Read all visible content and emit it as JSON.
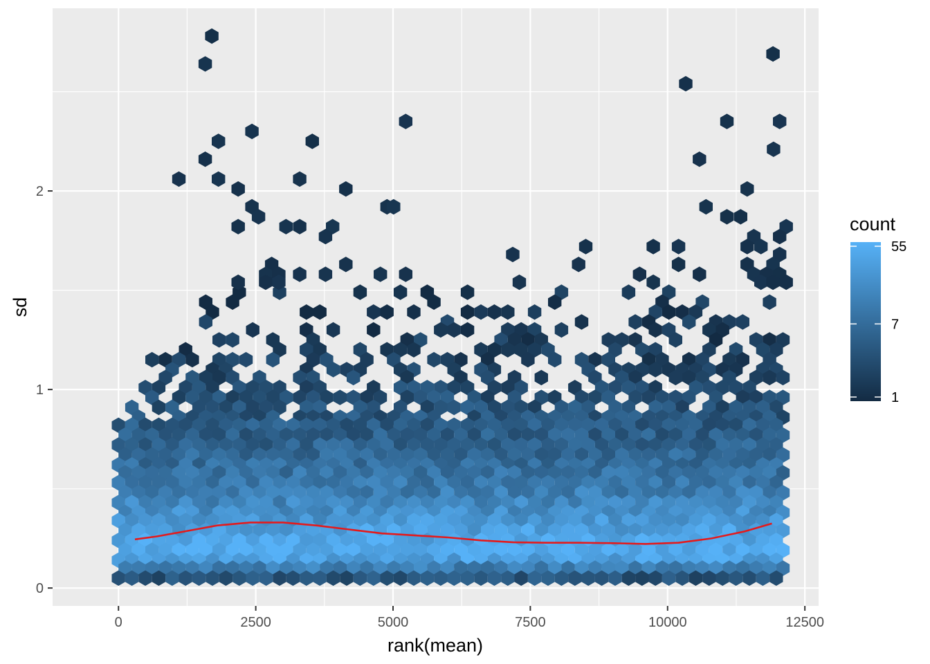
{
  "chart_data": {
    "type": "hexbin",
    "xlabel": "rank(mean)",
    "ylabel": "sd",
    "xlim": [
      -1200,
      12750
    ],
    "ylim": [
      -0.09,
      2.92
    ],
    "x_ticks": [
      0,
      2500,
      5000,
      7500,
      10000,
      12500
    ],
    "y_ticks": [
      0,
      1,
      2
    ],
    "grid": true,
    "legend": {
      "title": "count",
      "placement": "right",
      "scale": "log",
      "breaks": [
        55,
        7,
        1
      ],
      "colors": {
        "low": "#132B43",
        "high": "#56B1F7"
      }
    },
    "scatter_high": [
      {
        "x": 1700,
        "y": 2.78
      },
      {
        "x": 1580,
        "y": 2.64
      },
      {
        "x": 11920,
        "y": 2.69
      },
      {
        "x": 10330,
        "y": 2.54
      },
      {
        "x": 5230,
        "y": 2.35
      },
      {
        "x": 11080,
        "y": 2.35
      },
      {
        "x": 12040,
        "y": 2.35
      },
      {
        "x": 2430,
        "y": 2.3
      },
      {
        "x": 1820,
        "y": 2.25
      },
      {
        "x": 3530,
        "y": 2.25
      },
      {
        "x": 11930,
        "y": 2.21
      },
      {
        "x": 1580,
        "y": 2.16
      },
      {
        "x": 10580,
        "y": 2.16
      },
      {
        "x": 1100,
        "y": 2.06
      },
      {
        "x": 1820,
        "y": 2.06
      },
      {
        "x": 3300,
        "y": 2.06
      },
      {
        "x": 2180,
        "y": 2.01
      },
      {
        "x": 4140,
        "y": 2.01
      },
      {
        "x": 11450,
        "y": 2.01
      },
      {
        "x": 2430,
        "y": 1.92
      },
      {
        "x": 4890,
        "y": 1.92
      },
      {
        "x": 5010,
        "y": 1.92
      },
      {
        "x": 10700,
        "y": 1.92
      },
      {
        "x": 2550,
        "y": 1.87
      },
      {
        "x": 11080,
        "y": 1.87
      },
      {
        "x": 11330,
        "y": 1.87
      },
      {
        "x": 2180,
        "y": 1.82
      },
      {
        "x": 3050,
        "y": 1.82
      },
      {
        "x": 3300,
        "y": 1.82
      },
      {
        "x": 3900,
        "y": 1.82
      },
      {
        "x": 12160,
        "y": 1.82
      },
      {
        "x": 3770,
        "y": 1.77
      },
      {
        "x": 11570,
        "y": 1.77
      },
      {
        "x": 12040,
        "y": 1.77
      },
      {
        "x": 8510,
        "y": 1.72
      },
      {
        "x": 9740,
        "y": 1.72
      },
      {
        "x": 10200,
        "y": 1.72
      },
      {
        "x": 11450,
        "y": 1.72
      },
      {
        "x": 11700,
        "y": 1.72
      },
      {
        "x": 7180,
        "y": 1.68
      },
      {
        "x": 12040,
        "y": 1.68
      },
      {
        "x": 2790,
        "y": 1.63
      },
      {
        "x": 4140,
        "y": 1.63
      },
      {
        "x": 8380,
        "y": 1.63
      },
      {
        "x": 10200,
        "y": 1.63
      },
      {
        "x": 11450,
        "y": 1.63
      },
      {
        "x": 11920,
        "y": 1.63
      },
      {
        "x": 2680,
        "y": 1.58
      },
      {
        "x": 2920,
        "y": 1.58
      },
      {
        "x": 3300,
        "y": 1.58
      },
      {
        "x": 3770,
        "y": 1.58
      },
      {
        "x": 4770,
        "y": 1.58
      },
      {
        "x": 5230,
        "y": 1.58
      },
      {
        "x": 9490,
        "y": 1.58
      },
      {
        "x": 10580,
        "y": 1.58
      },
      {
        "x": 11570,
        "y": 1.58
      },
      {
        "x": 11800,
        "y": 1.58
      },
      {
        "x": 12040,
        "y": 1.58
      },
      {
        "x": 2180,
        "y": 1.54
      },
      {
        "x": 2680,
        "y": 1.54
      },
      {
        "x": 2920,
        "y": 1.54
      },
      {
        "x": 7300,
        "y": 1.54
      },
      {
        "x": 9740,
        "y": 1.54
      },
      {
        "x": 11700,
        "y": 1.54
      },
      {
        "x": 11920,
        "y": 1.54
      },
      {
        "x": 12160,
        "y": 1.54
      }
    ],
    "density_rows": [
      {
        "y": 1.49,
        "x_from": 1500,
        "x_to": 12100,
        "spacing": 700,
        "level": 0.05
      },
      {
        "y": 1.44,
        "x_from": 1450,
        "x_to": 12100,
        "spacing": 800,
        "level": 0.07
      },
      {
        "y": 1.39,
        "x_from": 1350,
        "x_to": 12100,
        "spacing": 600,
        "level": 0.08
      },
      {
        "y": 1.34,
        "x_from": 1500,
        "x_to": 12100,
        "spacing": 500,
        "level": 0.1
      },
      {
        "y": 1.3,
        "x_from": 1800,
        "x_to": 12100,
        "spacing": 380,
        "level": 0.12
      },
      {
        "y": 1.25,
        "x_from": 1700,
        "x_to": 12100,
        "spacing": 330,
        "level": 0.14
      },
      {
        "y": 1.2,
        "x_from": 300,
        "x_to": 12100,
        "spacing": 300,
        "level": 0.15
      },
      {
        "y": 1.15,
        "x_from": 300,
        "x_to": 12100,
        "spacing": 260,
        "level": 0.17
      },
      {
        "y": 1.1,
        "x_from": 300,
        "x_to": 12100,
        "spacing": 220,
        "level": 0.19
      },
      {
        "y": 1.06,
        "x_from": 300,
        "x_to": 12100,
        "spacing": 200,
        "level": 0.21
      },
      {
        "y": 1.01,
        "x_from": 300,
        "x_to": 12100,
        "spacing": 180,
        "level": 0.23
      },
      {
        "y": 0.96,
        "x_from": 200,
        "x_to": 12100,
        "spacing": 160,
        "level": 0.26
      },
      {
        "y": 0.91,
        "x_from": 200,
        "x_to": 12100,
        "spacing": 150,
        "level": 0.29
      },
      {
        "y": 0.86,
        "x_from": 200,
        "x_to": 12100,
        "spacing": 140,
        "level": 0.32
      },
      {
        "y": 0.82,
        "x_from": 0,
        "x_to": 12100,
        "spacing": 130,
        "level": 0.35
      },
      {
        "y": 0.77,
        "x_from": 0,
        "x_to": 12100,
        "spacing": 125,
        "level": 0.38
      },
      {
        "y": 0.72,
        "x_from": 0,
        "x_to": 12100,
        "spacing": 120,
        "level": 0.41
      },
      {
        "y": 0.67,
        "x_from": 0,
        "x_to": 12100,
        "spacing": 120,
        "level": 0.45
      },
      {
        "y": 0.62,
        "x_from": 0,
        "x_to": 12100,
        "spacing": 120,
        "level": 0.49
      },
      {
        "y": 0.58,
        "x_from": 0,
        "x_to": 12100,
        "spacing": 120,
        "level": 0.53
      },
      {
        "y": 0.53,
        "x_from": 0,
        "x_to": 12100,
        "spacing": 120,
        "level": 0.57
      },
      {
        "y": 0.48,
        "x_from": 0,
        "x_to": 12100,
        "spacing": 120,
        "level": 0.62
      },
      {
        "y": 0.43,
        "x_from": 0,
        "x_to": 12100,
        "spacing": 120,
        "level": 0.68
      },
      {
        "y": 0.38,
        "x_from": 0,
        "x_to": 12100,
        "spacing": 120,
        "level": 0.74
      },
      {
        "y": 0.34,
        "x_from": 0,
        "x_to": 12100,
        "spacing": 120,
        "level": 0.8
      },
      {
        "y": 0.29,
        "x_from": 0,
        "x_to": 12100,
        "spacing": 120,
        "level": 0.86
      },
      {
        "y": 0.24,
        "x_from": 0,
        "x_to": 12100,
        "spacing": 120,
        "level": 0.92
      },
      {
        "y": 0.19,
        "x_from": 0,
        "x_to": 12100,
        "spacing": 120,
        "level": 0.97
      },
      {
        "y": 0.14,
        "x_from": 0,
        "x_to": 12100,
        "spacing": 120,
        "level": 0.88
      },
      {
        "y": 0.1,
        "x_from": 0,
        "x_to": 12100,
        "spacing": 120,
        "level": 0.62
      },
      {
        "y": 0.05,
        "x_from": 0,
        "x_to": 12100,
        "spacing": 120,
        "level": 0.3
      }
    ],
    "smooth_line": {
      "color": "#e41a1c",
      "x": [
        300,
        700,
        1200,
        1800,
        2400,
        3000,
        3600,
        4200,
        4800,
        5400,
        6000,
        6600,
        7200,
        7800,
        8400,
        9000,
        9600,
        10200,
        10800,
        11400,
        11900
      ],
      "y": [
        0.245,
        0.26,
        0.285,
        0.315,
        0.33,
        0.33,
        0.315,
        0.295,
        0.275,
        0.265,
        0.255,
        0.24,
        0.23,
        0.228,
        0.228,
        0.226,
        0.222,
        0.228,
        0.25,
        0.285,
        0.325
      ]
    }
  }
}
